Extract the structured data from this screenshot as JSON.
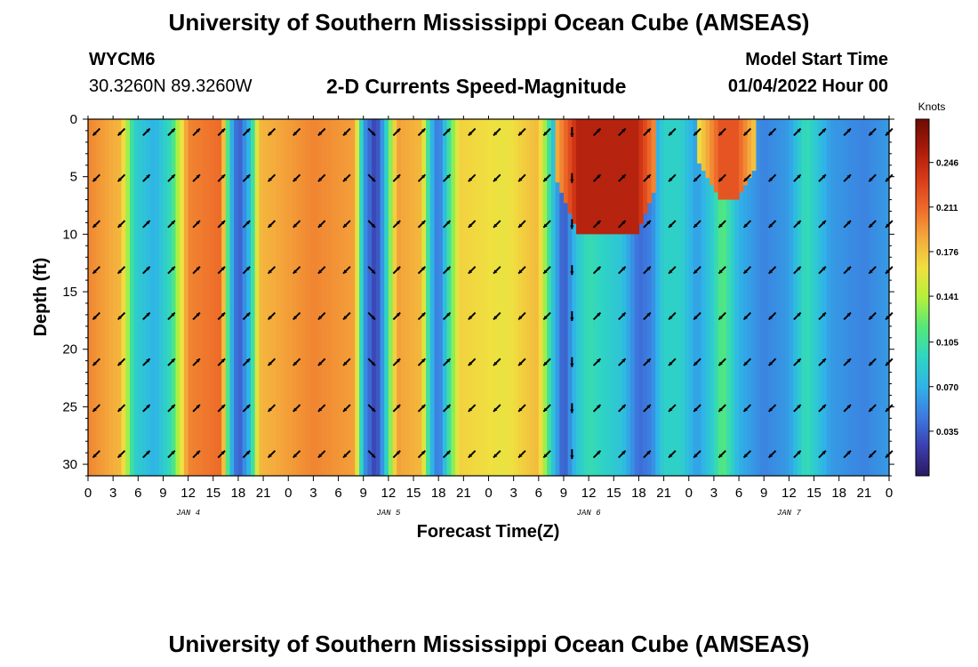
{
  "header": {
    "title": "University of Southern Mississippi Ocean Cube (AMSEAS)",
    "station": "WYCM6",
    "coords": "30.3260N  89.3260W",
    "subtitle": "2-D Currents Speed-Magnitude",
    "model_label": "Model Start Time",
    "model_time": "01/04/2022 Hour 00"
  },
  "footer": {
    "title": "University of Southern Mississippi Ocean Cube (AMSEAS)"
  },
  "chart_data": {
    "type": "heatmap",
    "title": "2-D Currents Speed-Magnitude",
    "xlabel": "Forecast Time(Z)",
    "ylabel": "Depth (ft)",
    "units": "Knots",
    "x_range_hours": [
      0,
      96
    ],
    "ylim": [
      0,
      31
    ],
    "y_inverted": true,
    "x_ticks": [
      "0",
      "3",
      "6",
      "9",
      "12",
      "15",
      "18",
      "21",
      "0",
      "3",
      "6",
      "9",
      "12",
      "15",
      "18",
      "21",
      "0",
      "3",
      "6",
      "9",
      "12",
      "15",
      "18",
      "21",
      "0",
      "3",
      "6",
      "9",
      "12",
      "15",
      "18",
      "21",
      "0"
    ],
    "y_ticks": [
      "0",
      "5",
      "10",
      "15",
      "20",
      "25",
      "30"
    ],
    "day_labels": [
      {
        "label": "JAN 4",
        "hour": 12
      },
      {
        "label": "JAN 5",
        "hour": 36
      },
      {
        "label": "JAN 6",
        "hour": 60
      },
      {
        "label": "JAN 7",
        "hour": 84
      }
    ],
    "colorbar": {
      "ticks": [
        "0.246",
        "0.211",
        "0.176",
        "0.141",
        "0.105",
        "0.070",
        "0.035"
      ],
      "tick_values": [
        0.246,
        0.211,
        0.176,
        0.141,
        0.105,
        0.07,
        0.035
      ],
      "range": [
        0,
        0.28
      ],
      "colors": [
        "#2a1a5e",
        "#3b3fb0",
        "#3d7be0",
        "#2fb3e8",
        "#2fd6c2",
        "#54e87a",
        "#b5f03c",
        "#f0e040",
        "#f4a93c",
        "#ee6a2a",
        "#d83a18",
        "#a81a0a",
        "#6e0c04"
      ]
    },
    "speed_profile_knots": [
      {
        "hour": 0,
        "speed": 0.2
      },
      {
        "hour": 4,
        "speed": 0.18
      },
      {
        "hour": 5.5,
        "speed": 0.09
      },
      {
        "hour": 8,
        "speed": 0.07
      },
      {
        "hour": 10,
        "speed": 0.1
      },
      {
        "hour": 12,
        "speed": 0.2
      },
      {
        "hour": 16,
        "speed": 0.21
      },
      {
        "hour": 17,
        "speed": 0.08
      },
      {
        "hour": 18,
        "speed": 0.03
      },
      {
        "hour": 19.5,
        "speed": 0.08
      },
      {
        "hour": 20.5,
        "speed": 0.18
      },
      {
        "hour": 27,
        "speed": 0.2
      },
      {
        "hour": 32,
        "speed": 0.19
      },
      {
        "hour": 33,
        "speed": 0.06
      },
      {
        "hour": 34.5,
        "speed": 0.02
      },
      {
        "hour": 35.5,
        "speed": 0.07
      },
      {
        "hour": 37,
        "speed": 0.19
      },
      {
        "hour": 40,
        "speed": 0.18
      },
      {
        "hour": 41,
        "speed": 0.08
      },
      {
        "hour": 42,
        "speed": 0.04
      },
      {
        "hour": 43,
        "speed": 0.09
      },
      {
        "hour": 44.5,
        "speed": 0.17
      },
      {
        "hour": 50,
        "speed": 0.16
      },
      {
        "hour": 54,
        "speed": 0.18
      },
      {
        "hour": 55.5,
        "speed": 0.09
      },
      {
        "hour": 57,
        "speed": 0.03
      },
      {
        "hour": 58.5,
        "speed": 0.08
      },
      {
        "hour": 60,
        "speed": 0.1
      },
      {
        "hour": 64,
        "speed": 0.08
      },
      {
        "hour": 66,
        "speed": 0.04
      },
      {
        "hour": 67.5,
        "speed": 0.05
      },
      {
        "hour": 69,
        "speed": 0.09
      },
      {
        "hour": 71,
        "speed": 0.09
      },
      {
        "hour": 73,
        "speed": 0.06
      },
      {
        "hour": 75,
        "speed": 0.09
      },
      {
        "hour": 76,
        "speed": 0.12
      },
      {
        "hour": 78,
        "speed": 0.07
      },
      {
        "hour": 81,
        "speed": 0.05
      },
      {
        "hour": 84,
        "speed": 0.06
      },
      {
        "hour": 86,
        "speed": 0.1
      },
      {
        "hour": 89,
        "speed": 0.06
      },
      {
        "hour": 93,
        "speed": 0.05
      },
      {
        "hour": 96,
        "speed": 0.06
      }
    ],
    "surface_patches": [
      {
        "hour_start": 56,
        "hour_end": 68,
        "depth_start": 0,
        "depth_end": 10,
        "speed": 0.25
      },
      {
        "hour_start": 73,
        "hour_end": 80,
        "depth_start": 0,
        "depth_end": 7,
        "speed": 0.22
      }
    ],
    "arrow_depths_ft": [
      0.5,
      4.5,
      8.5,
      12.5,
      16.5,
      20.5,
      24.5,
      28.5
    ],
    "arrow_hours": [
      1,
      4,
      7,
      10,
      13,
      16,
      19,
      22,
      25,
      28,
      31,
      34,
      37,
      40,
      43,
      46,
      49,
      52,
      55,
      58,
      61,
      64,
      67,
      70,
      73,
      76,
      79,
      82,
      85,
      88,
      91,
      94,
      96
    ],
    "arrow_directions_deg": [
      225,
      225,
      45,
      45,
      45,
      45,
      45,
      225,
      225,
      225,
      225,
      135,
      45,
      45,
      45,
      225,
      225,
      225,
      225,
      180,
      45,
      45,
      45,
      225,
      225,
      225,
      225,
      225,
      45,
      45,
      45,
      225,
      225
    ]
  }
}
